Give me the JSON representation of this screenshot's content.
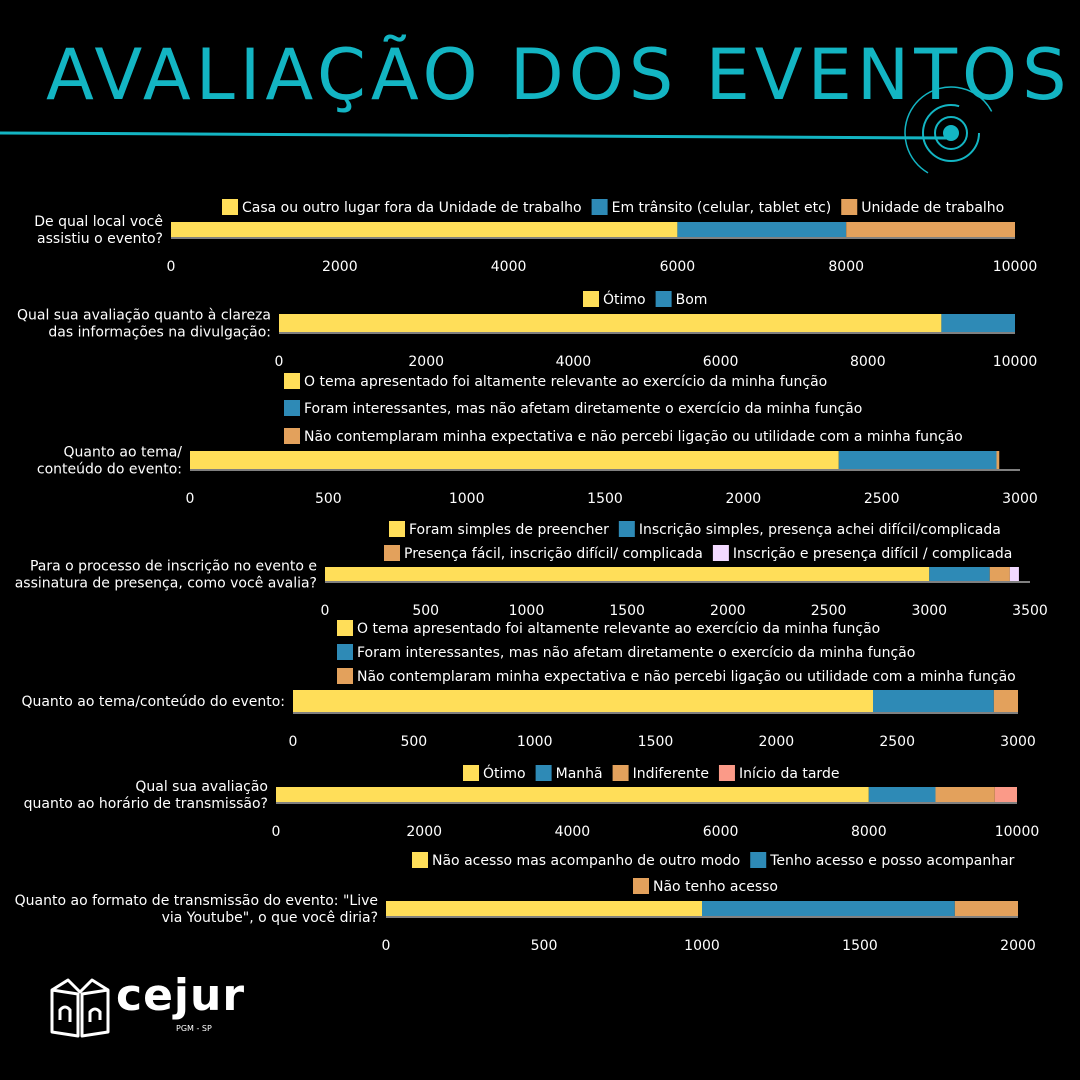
{
  "page": {
    "title": "AVALIAÇÃO DOS EVENTOS"
  },
  "logo": {
    "name": "cejur",
    "subtitle": "PGM - SP"
  },
  "colors": {
    "background": "#000000",
    "accent": "#13b5c3",
    "axis": "#ffffff"
  },
  "chart_data": [
    {
      "type": "bar",
      "orientation": "horizontal",
      "stacked": true,
      "question": [
        "De qual local você",
        "assistiu o evento?"
      ],
      "xlim": [
        0,
        10000
      ],
      "ticks": [
        0,
        2000,
        4000,
        6000,
        8000,
        10000
      ],
      "legend_rows": [
        [
          "Casa ou outro lugar fora da Unidade de trabalho",
          "Em trânsito (celular, tablet etc)",
          "Unidade de trabalho"
        ]
      ],
      "series": [
        {
          "name": "Casa ou outro lugar fora da Unidade de trabalho",
          "value": 6000,
          "color": "#ffde59"
        },
        {
          "name": "Em trânsito (celular, tablet etc)",
          "value": 2000,
          "color": "#2e8ab6"
        },
        {
          "name": "Unidade de trabalho",
          "value": 2000,
          "color": "#e3a15c"
        }
      ]
    },
    {
      "type": "bar",
      "orientation": "horizontal",
      "stacked": true,
      "question": [
        "Qual sua avaliação quanto à clareza",
        "das informações na divulgação:"
      ],
      "xlim": [
        0,
        10000
      ],
      "ticks": [
        0,
        2000,
        4000,
        6000,
        8000,
        10000
      ],
      "legend_rows": [
        [
          "Ótimo",
          "Bom"
        ]
      ],
      "series": [
        {
          "name": "Ótimo",
          "value": 9000,
          "color": "#ffde59"
        },
        {
          "name": "Bom",
          "value": 1000,
          "color": "#2e8ab6"
        }
      ]
    },
    {
      "type": "bar",
      "orientation": "horizontal",
      "stacked": true,
      "question": [
        "Quanto ao tema/",
        "conteúdo do evento:"
      ],
      "xlim": [
        0,
        3000
      ],
      "ticks": [
        0,
        500,
        1000,
        1500,
        2000,
        2500,
        3000
      ],
      "legend_rows": [
        [
          "O tema apresentado foi altamente relevante ao exercício da minha função"
        ],
        [
          "Foram interessantes, mas não afetam diretamente o exercício da minha função"
        ],
        [
          "Não contemplaram minha expectativa e não percebi ligação ou utilidade com a minha função"
        ]
      ],
      "series": [
        {
          "name": "O tema apresentado foi altamente relevante ao exercício da minha função",
          "value": 2345,
          "color": "#ffde59"
        },
        {
          "name": "Foram interessantes, mas não afetam diretamente o exercício da minha função",
          "value": 570,
          "color": "#2e8ab6"
        },
        {
          "name": "Não contemplaram minha expectativa e não percebi ligação ou utilidade com a minha função",
          "value": 10,
          "color": "#e3a15c"
        }
      ]
    },
    {
      "type": "bar",
      "orientation": "horizontal",
      "stacked": true,
      "question": [
        "Para o processo de inscrição no evento e",
        "assinatura de presença, como você avalia?"
      ],
      "xlim": [
        0,
        3500
      ],
      "ticks": [
        0,
        500,
        1000,
        1500,
        2000,
        2500,
        3000,
        3500
      ],
      "legend_rows": [
        [
          "Foram simples de preencher",
          "Inscrição simples, presença achei difícil/complicada"
        ],
        [
          "Presença fácil, inscrição difícil/ complicada",
          "Inscrição e presença difícil / complicada"
        ]
      ],
      "series": [
        {
          "name": "Foram simples de preencher",
          "value": 3000,
          "color": "#ffde59"
        },
        {
          "name": "Inscrição simples, presença achei difícil/complicada",
          "value": 300,
          "color": "#2e8ab6"
        },
        {
          "name": "Presença fácil, inscrição difícil/ complicada",
          "value": 100,
          "color": "#e3a15c"
        },
        {
          "name": "Inscrição e presença difícil / complicada",
          "value": 45,
          "color": "#f2d9ff"
        }
      ]
    },
    {
      "type": "bar",
      "orientation": "horizontal",
      "stacked": true,
      "question": [
        "Quanto ao tema/conteúdo do evento:"
      ],
      "xlim": [
        0,
        3000
      ],
      "ticks": [
        0,
        500,
        1000,
        1500,
        2000,
        2500,
        3000
      ],
      "legend_rows": [
        [
          "O tema apresentado foi altamente relevante ao exercício da minha função"
        ],
        [
          "Foram interessantes, mas não afetam diretamente o exercício da minha função"
        ],
        [
          "Não contemplaram minha expectativa e não percebi ligação ou utilidade com a minha função"
        ]
      ],
      "series": [
        {
          "name": "O tema apresentado foi altamente relevante ao exercício da minha função",
          "value": 2400,
          "color": "#ffde59"
        },
        {
          "name": "Foram interessantes, mas não afetam diretamente o exercício da minha função",
          "value": 500,
          "color": "#2e8ab6"
        },
        {
          "name": "Não contemplaram minha expectativa e não percebi ligação ou utilidade com a minha função",
          "value": 100,
          "color": "#e3a15c"
        }
      ]
    },
    {
      "type": "bar",
      "orientation": "horizontal",
      "stacked": true,
      "question": [
        "Qual sua avaliação",
        "quanto ao horário de transmissão?"
      ],
      "xlim": [
        0,
        10000
      ],
      "ticks": [
        0,
        2000,
        4000,
        6000,
        8000,
        10000
      ],
      "legend_rows": [
        [
          "Ótimo",
          "Manhã",
          "Indiferente",
          "Início da tarde"
        ]
      ],
      "series": [
        {
          "name": "Ótimo",
          "value": 8000,
          "color": "#ffde59"
        },
        {
          "name": "Manhã",
          "value": 900,
          "color": "#2e8ab6"
        },
        {
          "name": "Indiferente",
          "value": 800,
          "color": "#e3a15c"
        },
        {
          "name": "Início da tarde",
          "value": 300,
          "color": "#fb9a88"
        }
      ]
    },
    {
      "type": "bar",
      "orientation": "horizontal",
      "stacked": true,
      "question": [
        "Quanto ao formato de transmissão do evento: \"Live",
        "via Youtube\", o que você diria?"
      ],
      "xlim": [
        0,
        2000
      ],
      "ticks": [
        0,
        500,
        1000,
        1500,
        2000
      ],
      "legend_rows": [
        [
          "Não acesso mas acompanho de outro modo",
          "Tenho acesso e posso acompanhar"
        ],
        [
          "Não tenho acesso"
        ]
      ],
      "series": [
        {
          "name": "Não acesso mas acompanho de outro modo",
          "value": 1000,
          "color": "#ffde59"
        },
        {
          "name": "Tenho acesso e posso acompanhar",
          "value": 800,
          "color": "#2e8ab6"
        },
        {
          "name": "Não tenho acesso",
          "value": 200,
          "color": "#e3a15c"
        }
      ]
    }
  ]
}
